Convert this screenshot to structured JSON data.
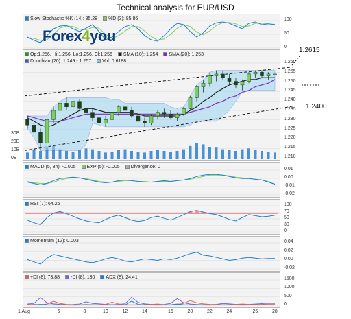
{
  "page": {
    "title": "Technical analysis for EUR/USD"
  },
  "logo": {
    "text_main": "Forex",
    "text_accent": "4",
    "text_tail": "you"
  },
  "panels": {
    "stochastic": {
      "legend": [
        {
          "label": "Slow Stochastic %K (14): 85.28",
          "color": "#1e7fd0"
        },
        {
          "label": "%D (3): 85.86",
          "color": "#7fcf5f"
        }
      ],
      "y_ticks": [
        "100",
        "50",
        "0"
      ]
    },
    "price": {
      "legend_row1": [
        {
          "label": "Op:1.256, Hi:1.256, Lo:1.256, Cl:1.256",
          "color": "#2f8f2f"
        },
        {
          "label": "SMA (10): 1.254",
          "color": "#222222"
        },
        {
          "label": "SMA (20): 1.253",
          "color": "#7a2fbf"
        }
      ],
      "legend_row2": [
        {
          "label": "Donchian (20): 1.249 - 1.257",
          "color": "#2a5fd0"
        },
        {
          "label": "Vol: 0.6188",
          "color": "#7fc7ee"
        }
      ],
      "y_ticks": [
        "1.260",
        "1.255",
        "1.250",
        "1.245",
        "1.240",
        "1.235",
        "1.230",
        "1.225",
        "1.220",
        "1.215",
        "1.210"
      ],
      "volume_ticks": [
        "30B",
        "20B",
        "10B",
        "0B"
      ],
      "callouts": [
        "1.2615",
        "1.2400"
      ]
    },
    "macd": {
      "legend": [
        {
          "label": "MACD (5, 34): -0.005",
          "color": "#1e7fd0"
        },
        {
          "label": "EXP (5): -0.005",
          "color": "#7fcf5f"
        },
        {
          "label": "Divergence: 0",
          "color": "#aaaaaa"
        }
      ],
      "y_ticks": [
        "0.01",
        "0.00",
        "-0.01",
        "-0.02"
      ]
    },
    "rsi": {
      "legend": [
        {
          "label": "RSI (7): 64.26",
          "color": "#1e7fd0"
        }
      ],
      "y_ticks": [
        "100",
        "70",
        "50",
        "30",
        "0"
      ]
    },
    "momentum": {
      "legend": [
        {
          "label": "Momentum (12): 0.003",
          "color": "#1e7fd0"
        }
      ],
      "y_ticks": [
        "0.04",
        "0.02",
        "0.00",
        "-0.02"
      ]
    },
    "adx": {
      "legend": [
        {
          "label": "+DI (8): 73.88",
          "color": "#e06060"
        },
        {
          "label": "-DI (8): 130",
          "color": "#6a6ad8"
        },
        {
          "label": "ADX (8): 24.41",
          "color": "#1e7fd0"
        }
      ],
      "y_ticks": [
        "1500",
        "1000",
        "500",
        "0"
      ]
    }
  },
  "x_axis": {
    "labels": [
      "1 Aug",
      "6",
      "8",
      "10",
      "12",
      "14",
      "16",
      "20",
      "22",
      "24",
      "26",
      "28"
    ]
  },
  "colors": {
    "up": "#7fcf5f",
    "down": "#1f3f1f",
    "panel_bg": "#f3f3f3",
    "grid": "#d8d8d8"
  },
  "chart_data": [
    {
      "type": "line",
      "title": "Slow Stochastic",
      "series": [
        {
          "name": "Slow Stochastic %K (14)",
          "values": [
            40,
            28,
            20,
            45,
            70,
            80,
            82,
            70,
            60,
            72,
            85,
            60,
            30,
            40,
            60,
            78,
            85,
            70,
            45,
            30,
            25,
            45,
            70,
            90,
            85,
            60,
            40,
            55,
            80,
            92,
            95,
            90,
            80,
            70,
            90,
            95,
            85,
            88,
            85
          ]
        },
        {
          "name": "%D (3)",
          "values": [
            38,
            35,
            28,
            30,
            50,
            72,
            80,
            78,
            68,
            66,
            75,
            72,
            50,
            35,
            45,
            62,
            78,
            78,
            62,
            42,
            28,
            33,
            50,
            72,
            85,
            78,
            58,
            48,
            62,
            82,
            92,
            93,
            88,
            78,
            80,
            90,
            90,
            88,
            86
          ]
        }
      ],
      "ylim": [
        0,
        100
      ]
    },
    {
      "type": "candlestick",
      "title": "EUR/USD",
      "ohlc": [
        [
          1.231,
          1.233,
          1.226,
          1.228
        ],
        [
          1.228,
          1.23,
          1.221,
          1.224
        ],
        [
          1.224,
          1.226,
          1.214,
          1.218
        ],
        [
          1.218,
          1.232,
          1.217,
          1.231
        ],
        [
          1.231,
          1.238,
          1.229,
          1.236
        ],
        [
          1.236,
          1.241,
          1.234,
          1.24
        ],
        [
          1.24,
          1.243,
          1.236,
          1.238
        ],
        [
          1.238,
          1.242,
          1.235,
          1.241
        ],
        [
          1.241,
          1.242,
          1.236,
          1.237
        ],
        [
          1.237,
          1.24,
          1.233,
          1.235
        ],
        [
          1.235,
          1.237,
          1.23,
          1.232
        ],
        [
          1.232,
          1.234,
          1.228,
          1.229
        ],
        [
          1.229,
          1.233,
          1.227,
          1.231
        ],
        [
          1.231,
          1.236,
          1.23,
          1.235
        ],
        [
          1.235,
          1.239,
          1.233,
          1.238
        ],
        [
          1.238,
          1.24,
          1.234,
          1.236
        ],
        [
          1.236,
          1.238,
          1.232,
          1.233
        ],
        [
          1.233,
          1.235,
          1.229,
          1.23
        ],
        [
          1.23,
          1.232,
          1.227,
          1.229
        ],
        [
          1.229,
          1.234,
          1.228,
          1.233
        ],
        [
          1.233,
          1.236,
          1.231,
          1.235
        ],
        [
          1.235,
          1.237,
          1.232,
          1.234
        ],
        [
          1.234,
          1.236,
          1.231,
          1.232
        ],
        [
          1.232,
          1.235,
          1.23,
          1.234
        ],
        [
          1.234,
          1.238,
          1.233,
          1.237
        ],
        [
          1.237,
          1.244,
          1.236,
          1.243
        ],
        [
          1.243,
          1.25,
          1.241,
          1.249
        ],
        [
          1.249,
          1.253,
          1.246,
          1.251
        ],
        [
          1.251,
          1.257,
          1.249,
          1.255
        ],
        [
          1.255,
          1.258,
          1.252,
          1.256
        ],
        [
          1.256,
          1.258,
          1.253,
          1.254
        ],
        [
          1.254,
          1.256,
          1.25,
          1.252
        ],
        [
          1.252,
          1.254,
          1.248,
          1.25
        ],
        [
          1.25,
          1.253,
          1.247,
          1.252
        ],
        [
          1.252,
          1.257,
          1.251,
          1.256
        ],
        [
          1.256,
          1.258,
          1.254,
          1.257
        ],
        [
          1.257,
          1.258,
          1.254,
          1.255
        ],
        [
          1.255,
          1.257,
          1.253,
          1.256
        ],
        [
          1.256,
          1.256,
          1.256,
          1.256
        ]
      ],
      "sma10": [
        1.232,
        1.23,
        1.228,
        1.227,
        1.228,
        1.23,
        1.232,
        1.234,
        1.236,
        1.237,
        1.237,
        1.236,
        1.235,
        1.235,
        1.235,
        1.235,
        1.235,
        1.234,
        1.233,
        1.233,
        1.233,
        1.233,
        1.233,
        1.233,
        1.234,
        1.236,
        1.238,
        1.241,
        1.243,
        1.246,
        1.248,
        1.25,
        1.251,
        1.252,
        1.253,
        1.253,
        1.254,
        1.254,
        1.254
      ],
      "sma20": [
        1.233,
        1.232,
        1.231,
        1.23,
        1.23,
        1.23,
        1.231,
        1.232,
        1.233,
        1.234,
        1.234,
        1.234,
        1.234,
        1.234,
        1.234,
        1.234,
        1.234,
        1.234,
        1.234,
        1.234,
        1.234,
        1.234,
        1.234,
        1.234,
        1.234,
        1.235,
        1.236,
        1.237,
        1.238,
        1.24,
        1.241,
        1.243,
        1.244,
        1.246,
        1.247,
        1.249,
        1.25,
        1.251,
        1.253
      ],
      "volume": [
        8,
        12,
        10,
        14,
        16,
        12,
        10,
        9,
        11,
        13,
        12,
        10,
        8,
        9,
        11,
        12,
        10,
        9,
        8,
        10,
        11,
        10,
        9,
        10,
        12,
        16,
        20,
        18,
        15,
        14,
        12,
        11,
        10,
        12,
        13,
        11,
        10,
        9,
        8
      ],
      "ylim": [
        1.21,
        1.262
      ]
    },
    {
      "type": "line",
      "title": "MACD",
      "series": [
        {
          "name": "MACD (5, 34)",
          "values": [
            -0.002,
            -0.004,
            -0.006,
            -0.004,
            0.0,
            0.003,
            0.004,
            0.005,
            0.004,
            0.002,
            0.0,
            -0.002,
            -0.003,
            -0.002,
            0.0,
            0.001,
            0.0,
            -0.001,
            -0.002,
            -0.002,
            -0.001,
            0.0,
            -0.001,
            0.0,
            0.001,
            0.003,
            0.006,
            0.008,
            0.009,
            0.009,
            0.008,
            0.006,
            0.004,
            0.003,
            0.003,
            0.002,
            0.001,
            -0.002,
            -0.005
          ]
        },
        {
          "name": "EXP (5)",
          "values": [
            -0.001,
            -0.003,
            -0.004,
            -0.004,
            -0.002,
            0.001,
            0.003,
            0.004,
            0.004,
            0.003,
            0.001,
            -0.001,
            -0.002,
            -0.002,
            -0.001,
            0.0,
            0.0,
            -0.001,
            -0.001,
            -0.002,
            -0.001,
            -0.001,
            -0.001,
            0.0,
            0.001,
            0.002,
            0.004,
            0.006,
            0.008,
            0.008,
            0.008,
            0.007,
            0.005,
            0.004,
            0.003,
            0.002,
            0.001,
            -0.001,
            -0.005
          ]
        }
      ],
      "ylim": [
        -0.02,
        0.015
      ]
    },
    {
      "type": "line",
      "title": "RSI",
      "series": [
        {
          "name": "RSI (7)",
          "values": [
            45,
            35,
            28,
            55,
            72,
            78,
            70,
            60,
            50,
            42,
            38,
            35,
            48,
            58,
            64,
            55,
            45,
            40,
            44,
            55,
            60,
            52,
            45,
            55,
            66,
            78,
            82,
            76,
            70,
            66,
            58,
            48,
            42,
            55,
            66,
            62,
            58,
            60,
            64
          ]
        }
      ],
      "ylim": [
        0,
        100
      ]
    },
    {
      "type": "line",
      "title": "Momentum",
      "series": [
        {
          "name": "Momentum (12)",
          "values": [
            0.0,
            -0.006,
            -0.012,
            0.004,
            0.014,
            0.01,
            0.006,
            0.002,
            -0.002,
            -0.006,
            -0.008,
            -0.004,
            0.002,
            0.006,
            0.002,
            -0.004,
            -0.006,
            -0.002,
            0.002,
            0.0,
            -0.002,
            0.002,
            0.0,
            0.004,
            0.01,
            0.016,
            0.02,
            0.012,
            0.01,
            0.006,
            0.002,
            -0.002,
            0.0,
            0.004,
            0.006,
            0.004,
            0.002,
            0.003,
            0.003
          ]
        }
      ],
      "ylim": [
        -0.025,
        0.045
      ]
    },
    {
      "type": "line",
      "title": "ADX / DI",
      "series": [
        {
          "name": "+DI (8)",
          "values": [
            40,
            60,
            30,
            80,
            260,
            120,
            60,
            40,
            30,
            50,
            40,
            30,
            60,
            200,
            80,
            40,
            30,
            30,
            50,
            60,
            80,
            40,
            30,
            60,
            120,
            300,
            160,
            90,
            60,
            50,
            40,
            40,
            60,
            80,
            60,
            50,
            60,
            80,
            74
          ]
        },
        {
          "name": "-DI (8)",
          "values": [
            80,
            120,
            480,
            160,
            90,
            60,
            40,
            50,
            80,
            220,
            120,
            90,
            60,
            40,
            60,
            100,
            500,
            180,
            90,
            60,
            40,
            60,
            120,
            420,
            160,
            80,
            50,
            40,
            40,
            60,
            120,
            90,
            60,
            50,
            60,
            80,
            110,
            140,
            130
          ]
        },
        {
          "name": "ADX (8)",
          "values": [
            20,
            30,
            60,
            40,
            30,
            25,
            20,
            18,
            20,
            40,
            30,
            22,
            20,
            30,
            25,
            20,
            260,
            60,
            30,
            20,
            18,
            20,
            30,
            80,
            40,
            30,
            25,
            20,
            18,
            20,
            30,
            25,
            20,
            18,
            20,
            22,
            24,
            25,
            24
          ]
        }
      ],
      "ylim": [
        0,
        1600
      ]
    }
  ]
}
